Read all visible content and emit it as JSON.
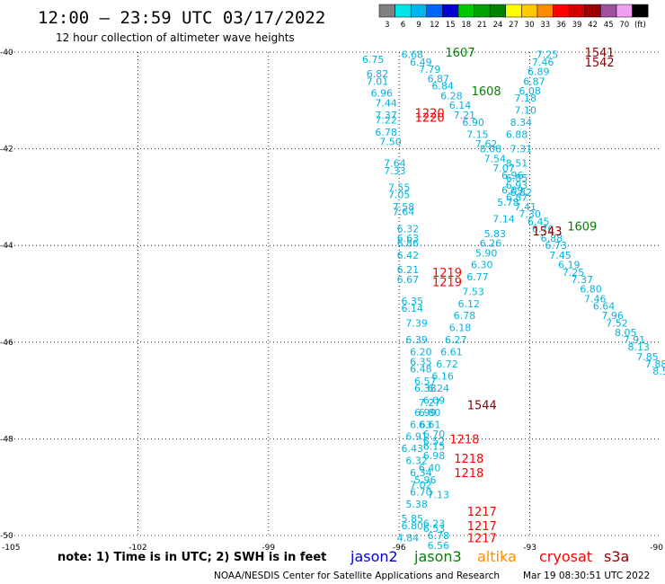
{
  "header": {
    "title": "12:00 – 23:59 UTC 03/17/2022",
    "subtitle": "12 hour collection of altimeter wave heights"
  },
  "scale": {
    "labels": [
      "3",
      "6",
      "9",
      "12",
      "15",
      "18",
      "21",
      "24",
      "27",
      "30",
      "33",
      "36",
      "39",
      "42",
      "45",
      "70",
      "(ft)"
    ],
    "colors": [
      "#808080",
      "#00e6e6",
      "#00b4f0",
      "#0064ff",
      "#0000d2",
      "#00c800",
      "#00a000",
      "#008200",
      "#ffff00",
      "#ffc800",
      "#ff8c00",
      "#ff0000",
      "#d20000",
      "#a00000",
      "#a050a0",
      "#f0a0f0",
      "#000000"
    ]
  },
  "footer": {
    "note": "note:  1) Time is in UTC; 2) SWH is in feet",
    "credit": "NOAA/NESDIS Center for Satellite Applications and Research",
    "timestamp": "Mar 19 08:30:51 UTC 2022"
  },
  "legend": [
    {
      "name": "jason2",
      "color": "#0000d2"
    },
    {
      "name": "jason3",
      "color": "#008200"
    },
    {
      "name": "altika",
      "color": "#ff8c00"
    },
    {
      "name": "cryosat",
      "color": "#ff0000"
    },
    {
      "name": "s3a",
      "color": "#8b0000"
    }
  ],
  "chart_data": {
    "type": "scatter",
    "xlim": [
      -105,
      -90
    ],
    "ylim": [
      -50,
      -40
    ],
    "x_ticks": [
      "-105",
      "-102",
      "-99",
      "-96",
      "-93",
      "-90"
    ],
    "y_ticks": [
      "-40",
      "-42",
      "-44",
      "-46",
      "-48",
      "-50"
    ],
    "grid": true,
    "wave_heights": [
      {
        "x": -95.7,
        "y": -40.05,
        "v": "6.68"
      },
      {
        "x": -95.5,
        "y": -40.2,
        "v": "6.49"
      },
      {
        "x": -95.3,
        "y": -40.35,
        "v": "7.79"
      },
      {
        "x": -95.1,
        "y": -40.55,
        "v": "6.87"
      },
      {
        "x": -95.0,
        "y": -40.7,
        "v": "6.84"
      },
      {
        "x": -94.8,
        "y": -40.9,
        "v": "6.28"
      },
      {
        "x": -94.6,
        "y": -41.1,
        "v": "6.14"
      },
      {
        "x": -94.5,
        "y": -41.3,
        "v": "7.21"
      },
      {
        "x": -94.3,
        "y": -41.45,
        "v": "6.90"
      },
      {
        "x": -94.2,
        "y": -41.7,
        "v": "7.15"
      },
      {
        "x": -94.0,
        "y": -41.9,
        "v": "7.62"
      },
      {
        "x": -93.9,
        "y": -42.0,
        "v": "8.08"
      },
      {
        "x": -93.8,
        "y": -42.2,
        "v": "7.54"
      },
      {
        "x": -93.6,
        "y": -42.4,
        "v": "7.07"
      },
      {
        "x": -93.4,
        "y": -42.55,
        "v": "6.96"
      },
      {
        "x": -93.3,
        "y": -42.75,
        "v": "6.93"
      },
      {
        "x": -93.2,
        "y": -42.9,
        "v": "6.82"
      },
      {
        "x": -93.3,
        "y": -43.0,
        "v": "6.87"
      },
      {
        "x": -93.1,
        "y": -43.2,
        "v": "7.41"
      },
      {
        "x": -93.0,
        "y": -43.35,
        "v": "7.30"
      },
      {
        "x": -92.8,
        "y": -43.5,
        "v": "6.45"
      },
      {
        "x": -92.7,
        "y": -43.65,
        "v": "6.76"
      },
      {
        "x": -92.5,
        "y": -43.85,
        "v": "6.88"
      },
      {
        "x": -92.4,
        "y": -44.0,
        "v": "6.73"
      },
      {
        "x": -92.3,
        "y": -44.2,
        "v": "7.45"
      },
      {
        "x": -92.1,
        "y": -44.4,
        "v": "6.19"
      },
      {
        "x": -92.0,
        "y": -44.55,
        "v": "7.25"
      },
      {
        "x": -91.8,
        "y": -44.7,
        "v": "7.37"
      },
      {
        "x": -91.6,
        "y": -44.9,
        "v": "6.80"
      },
      {
        "x": -91.5,
        "y": -45.1,
        "v": "7.46"
      },
      {
        "x": -91.3,
        "y": -45.25,
        "v": "6.64"
      },
      {
        "x": -91.1,
        "y": -45.45,
        "v": "7.96"
      },
      {
        "x": -91.0,
        "y": -45.6,
        "v": "7.52"
      },
      {
        "x": -90.8,
        "y": -45.8,
        "v": "8.05"
      },
      {
        "x": -90.6,
        "y": -45.95,
        "v": "7.91"
      },
      {
        "x": -90.5,
        "y": -46.1,
        "v": "8.13"
      },
      {
        "x": -90.3,
        "y": -46.3,
        "v": "7.85"
      },
      {
        "x": -90.1,
        "y": -46.45,
        "v": "7.88"
      },
      {
        "x": -90.0,
        "y": -46.6,
        "v": "8.5"
      },
      {
        "x": -92.6,
        "y": -40.05,
        "v": "7.25"
      },
      {
        "x": -92.7,
        "y": -40.2,
        "v": "7.46"
      },
      {
        "x": -92.8,
        "y": -40.4,
        "v": "6.89"
      },
      {
        "x": -92.9,
        "y": -40.6,
        "v": "6.87"
      },
      {
        "x": -93.0,
        "y": -40.8,
        "v": "6.08"
      },
      {
        "x": -93.1,
        "y": -40.95,
        "v": "7.18"
      },
      {
        "x": -93.1,
        "y": -41.2,
        "v": "7.10"
      },
      {
        "x": -93.2,
        "y": -41.45,
        "v": "8.34"
      },
      {
        "x": -93.3,
        "y": -41.7,
        "v": "6.88"
      },
      {
        "x": -93.2,
        "y": -42.0,
        "v": "7.31"
      },
      {
        "x": -93.3,
        "y": -42.3,
        "v": "8.51"
      },
      {
        "x": -93.3,
        "y": -42.6,
        "v": "6.85"
      },
      {
        "x": -93.4,
        "y": -42.85,
        "v": "6.89"
      },
      {
        "x": -93.5,
        "y": -43.1,
        "v": "5.78"
      },
      {
        "x": -93.6,
        "y": -43.45,
        "v": "7.14"
      },
      {
        "x": -93.8,
        "y": -43.75,
        "v": "5.83"
      },
      {
        "x": -93.9,
        "y": -43.95,
        "v": "6.26"
      },
      {
        "x": -94.0,
        "y": -44.15,
        "v": "5.90"
      },
      {
        "x": -94.1,
        "y": -44.4,
        "v": "6.30"
      },
      {
        "x": -94.2,
        "y": -44.65,
        "v": "6.77"
      },
      {
        "x": -94.3,
        "y": -44.95,
        "v": "7.53"
      },
      {
        "x": -94.4,
        "y": -45.2,
        "v": "6.12"
      },
      {
        "x": -94.5,
        "y": -45.45,
        "v": "6.78"
      },
      {
        "x": -94.6,
        "y": -45.7,
        "v": "6.18"
      },
      {
        "x": -94.7,
        "y": -45.95,
        "v": "6.27"
      },
      {
        "x": -94.8,
        "y": -46.2,
        "v": "6.61"
      },
      {
        "x": -94.9,
        "y": -46.45,
        "v": "6.72"
      },
      {
        "x": -95.0,
        "y": -46.7,
        "v": "6.16"
      },
      {
        "x": -95.1,
        "y": -46.95,
        "v": "6.24"
      },
      {
        "x": -95.2,
        "y": -47.2,
        "v": "6.09"
      },
      {
        "x": -95.4,
        "y": -47.45,
        "v": "6.99"
      },
      {
        "x": -95.5,
        "y": -47.7,
        "v": "6.63"
      },
      {
        "x": -95.6,
        "y": -47.95,
        "v": "6.91"
      },
      {
        "x": -95.7,
        "y": -48.2,
        "v": "6.43"
      },
      {
        "x": -95.6,
        "y": -48.45,
        "v": "6.32"
      },
      {
        "x": -95.5,
        "y": -48.7,
        "v": "6.34"
      },
      {
        "x": -95.5,
        "y": -48.95,
        "v": "7.02"
      },
      {
        "x": -96.6,
        "y": -40.15,
        "v": "6.75"
      },
      {
        "x": -96.5,
        "y": -40.45,
        "v": "6.82"
      },
      {
        "x": -96.5,
        "y": -40.6,
        "v": "7.01"
      },
      {
        "x": -96.4,
        "y": -40.85,
        "v": "6.96"
      },
      {
        "x": -96.3,
        "y": -41.05,
        "v": "7.44"
      },
      {
        "x": -96.3,
        "y": -41.3,
        "v": "7.37"
      },
      {
        "x": -96.3,
        "y": -41.4,
        "v": "7.22"
      },
      {
        "x": -96.3,
        "y": -41.65,
        "v": "6.78"
      },
      {
        "x": -96.2,
        "y": -41.85,
        "v": "7.50"
      },
      {
        "x": -96.1,
        "y": -42.3,
        "v": "7.64"
      },
      {
        "x": -96.1,
        "y": -42.45,
        "v": "7.33"
      },
      {
        "x": -96.0,
        "y": -42.8,
        "v": "7.55"
      },
      {
        "x": -96.0,
        "y": -42.95,
        "v": "7.05"
      },
      {
        "x": -95.9,
        "y": -43.2,
        "v": "7.58"
      },
      {
        "x": -95.9,
        "y": -43.3,
        "v": "7.64"
      },
      {
        "x": -95.8,
        "y": -43.65,
        "v": "6.32"
      },
      {
        "x": -95.8,
        "y": -43.85,
        "v": "6.63"
      },
      {
        "x": -95.8,
        "y": -43.95,
        "v": "6.86"
      },
      {
        "x": -95.8,
        "y": -44.2,
        "v": "6.42"
      },
      {
        "x": -95.8,
        "y": -44.5,
        "v": "6.21"
      },
      {
        "x": -95.8,
        "y": -44.7,
        "v": "6.67"
      },
      {
        "x": -95.7,
        "y": -45.15,
        "v": "6.35"
      },
      {
        "x": -95.7,
        "y": -45.3,
        "v": "6.14"
      },
      {
        "x": -95.6,
        "y": -45.6,
        "v": "7.39"
      },
      {
        "x": -95.6,
        "y": -45.95,
        "v": "6.39"
      },
      {
        "x": -95.5,
        "y": -46.2,
        "v": "6.20"
      },
      {
        "x": -95.5,
        "y": -46.4,
        "v": "6.35"
      },
      {
        "x": -95.5,
        "y": -46.55,
        "v": "6.48"
      },
      {
        "x": -95.4,
        "y": -46.8,
        "v": "6.57"
      },
      {
        "x": -95.4,
        "y": -46.95,
        "v": "6.38"
      },
      {
        "x": -95.3,
        "y": -47.25,
        "v": "7.27"
      },
      {
        "x": -95.3,
        "y": -47.45,
        "v": "6.80"
      },
      {
        "x": -95.3,
        "y": -47.7,
        "v": "6.61"
      },
      {
        "x": -95.2,
        "y": -47.9,
        "v": "6.70"
      },
      {
        "x": -95.2,
        "y": -48.05,
        "v": "6.52"
      },
      {
        "x": -95.2,
        "y": -48.15,
        "v": "6.15"
      },
      {
        "x": -95.2,
        "y": -48.35,
        "v": "6.98"
      },
      {
        "x": -95.3,
        "y": -48.6,
        "v": "6.40"
      },
      {
        "x": -95.4,
        "y": -48.85,
        "v": "5.96"
      },
      {
        "x": -95.5,
        "y": -49.1,
        "v": "6.70"
      },
      {
        "x": -95.1,
        "y": -49.15,
        "v": "7.13"
      },
      {
        "x": -95.6,
        "y": -49.35,
        "v": "5.38"
      },
      {
        "x": -95.7,
        "y": -49.65,
        "v": "5.85"
      },
      {
        "x": -95.7,
        "y": -49.8,
        "v": "6.80"
      },
      {
        "x": -95.8,
        "y": -50.05,
        "v": "4.84"
      },
      {
        "x": -95.2,
        "y": -49.75,
        "v": "6.23"
      },
      {
        "x": -95.2,
        "y": -49.85,
        "v": "6.53"
      },
      {
        "x": -95.1,
        "y": -50.0,
        "v": "6.78"
      },
      {
        "x": -95.1,
        "y": -50.2,
        "v": "6.56"
      }
    ],
    "pass_times": [
      {
        "x": -94.6,
        "y": -40.0,
        "t": "1607",
        "sat": "jason3"
      },
      {
        "x": -94.0,
        "y": -40.8,
        "t": "1608",
        "sat": "jason3"
      },
      {
        "x": -91.8,
        "y": -43.6,
        "t": "1609",
        "sat": "jason3"
      },
      {
        "x": -91.4,
        "y": -40.0,
        "t": "1541",
        "sat": "s3a"
      },
      {
        "x": -91.4,
        "y": -40.2,
        "t": "1542",
        "sat": "s3a"
      },
      {
        "x": -92.6,
        "y": -43.7,
        "t": "1543",
        "sat": "s3a"
      },
      {
        "x": -94.1,
        "y": -47.3,
        "t": "1544",
        "sat": "s3a"
      },
      {
        "x": -95.3,
        "y": -41.25,
        "t": "1220",
        "sat": "cryosat"
      },
      {
        "x": -95.3,
        "y": -41.35,
        "t": "1220",
        "sat": "cryosat"
      },
      {
        "x": -94.9,
        "y": -44.55,
        "t": "1219",
        "sat": "cryosat"
      },
      {
        "x": -94.9,
        "y": -44.75,
        "t": "1219",
        "sat": "cryosat"
      },
      {
        "x": -94.5,
        "y": -48.0,
        "t": "1218",
        "sat": "cryosat"
      },
      {
        "x": -94.4,
        "y": -48.4,
        "t": "1218",
        "sat": "cryosat"
      },
      {
        "x": -94.4,
        "y": -48.7,
        "t": "1218",
        "sat": "cryosat"
      },
      {
        "x": -94.1,
        "y": -49.5,
        "t": "1217",
        "sat": "cryosat"
      },
      {
        "x": -94.1,
        "y": -49.8,
        "t": "1217",
        "sat": "cryosat"
      },
      {
        "x": -94.1,
        "y": -50.05,
        "t": "1217",
        "sat": "cryosat"
      }
    ],
    "sat_colors": {
      "jason2": "#0000d2",
      "jason3": "#008200",
      "altika": "#ff8c00",
      "cryosat": "#ff0000",
      "s3a": "#8b0000"
    },
    "value_color": "#00b4e0"
  }
}
